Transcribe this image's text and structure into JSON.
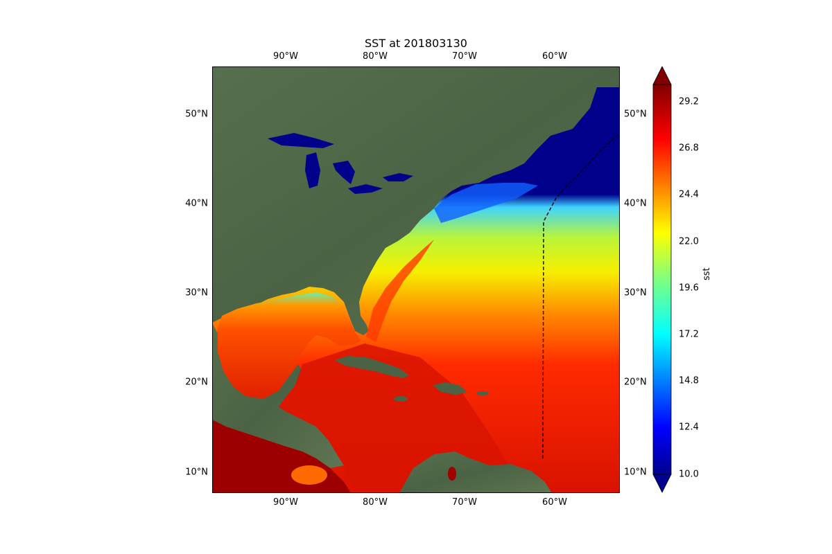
{
  "map": {
    "title": "SST at 201803130",
    "lon_ticks": [
      "90°W",
      "80°W",
      "70°W",
      "60°W"
    ],
    "lat_ticks": [
      "50°N",
      "40°N",
      "30°N",
      "20°N",
      "10°N"
    ],
    "basemap": "satellite imagery",
    "track_line": "dashed black"
  },
  "colorbar": {
    "label": "sst",
    "ticks": [
      "29.2",
      "26.8",
      "24.4",
      "22.0",
      "19.6",
      "17.2",
      "14.8",
      "12.4",
      "10.0"
    ],
    "min": 10.0,
    "max": 30.4,
    "colormap": "jet",
    "extend": "both"
  },
  "colors": {
    "ocean_cold": "#00008b",
    "ocean_warm": "#dd1a00",
    "land": "#4f6a45"
  }
}
